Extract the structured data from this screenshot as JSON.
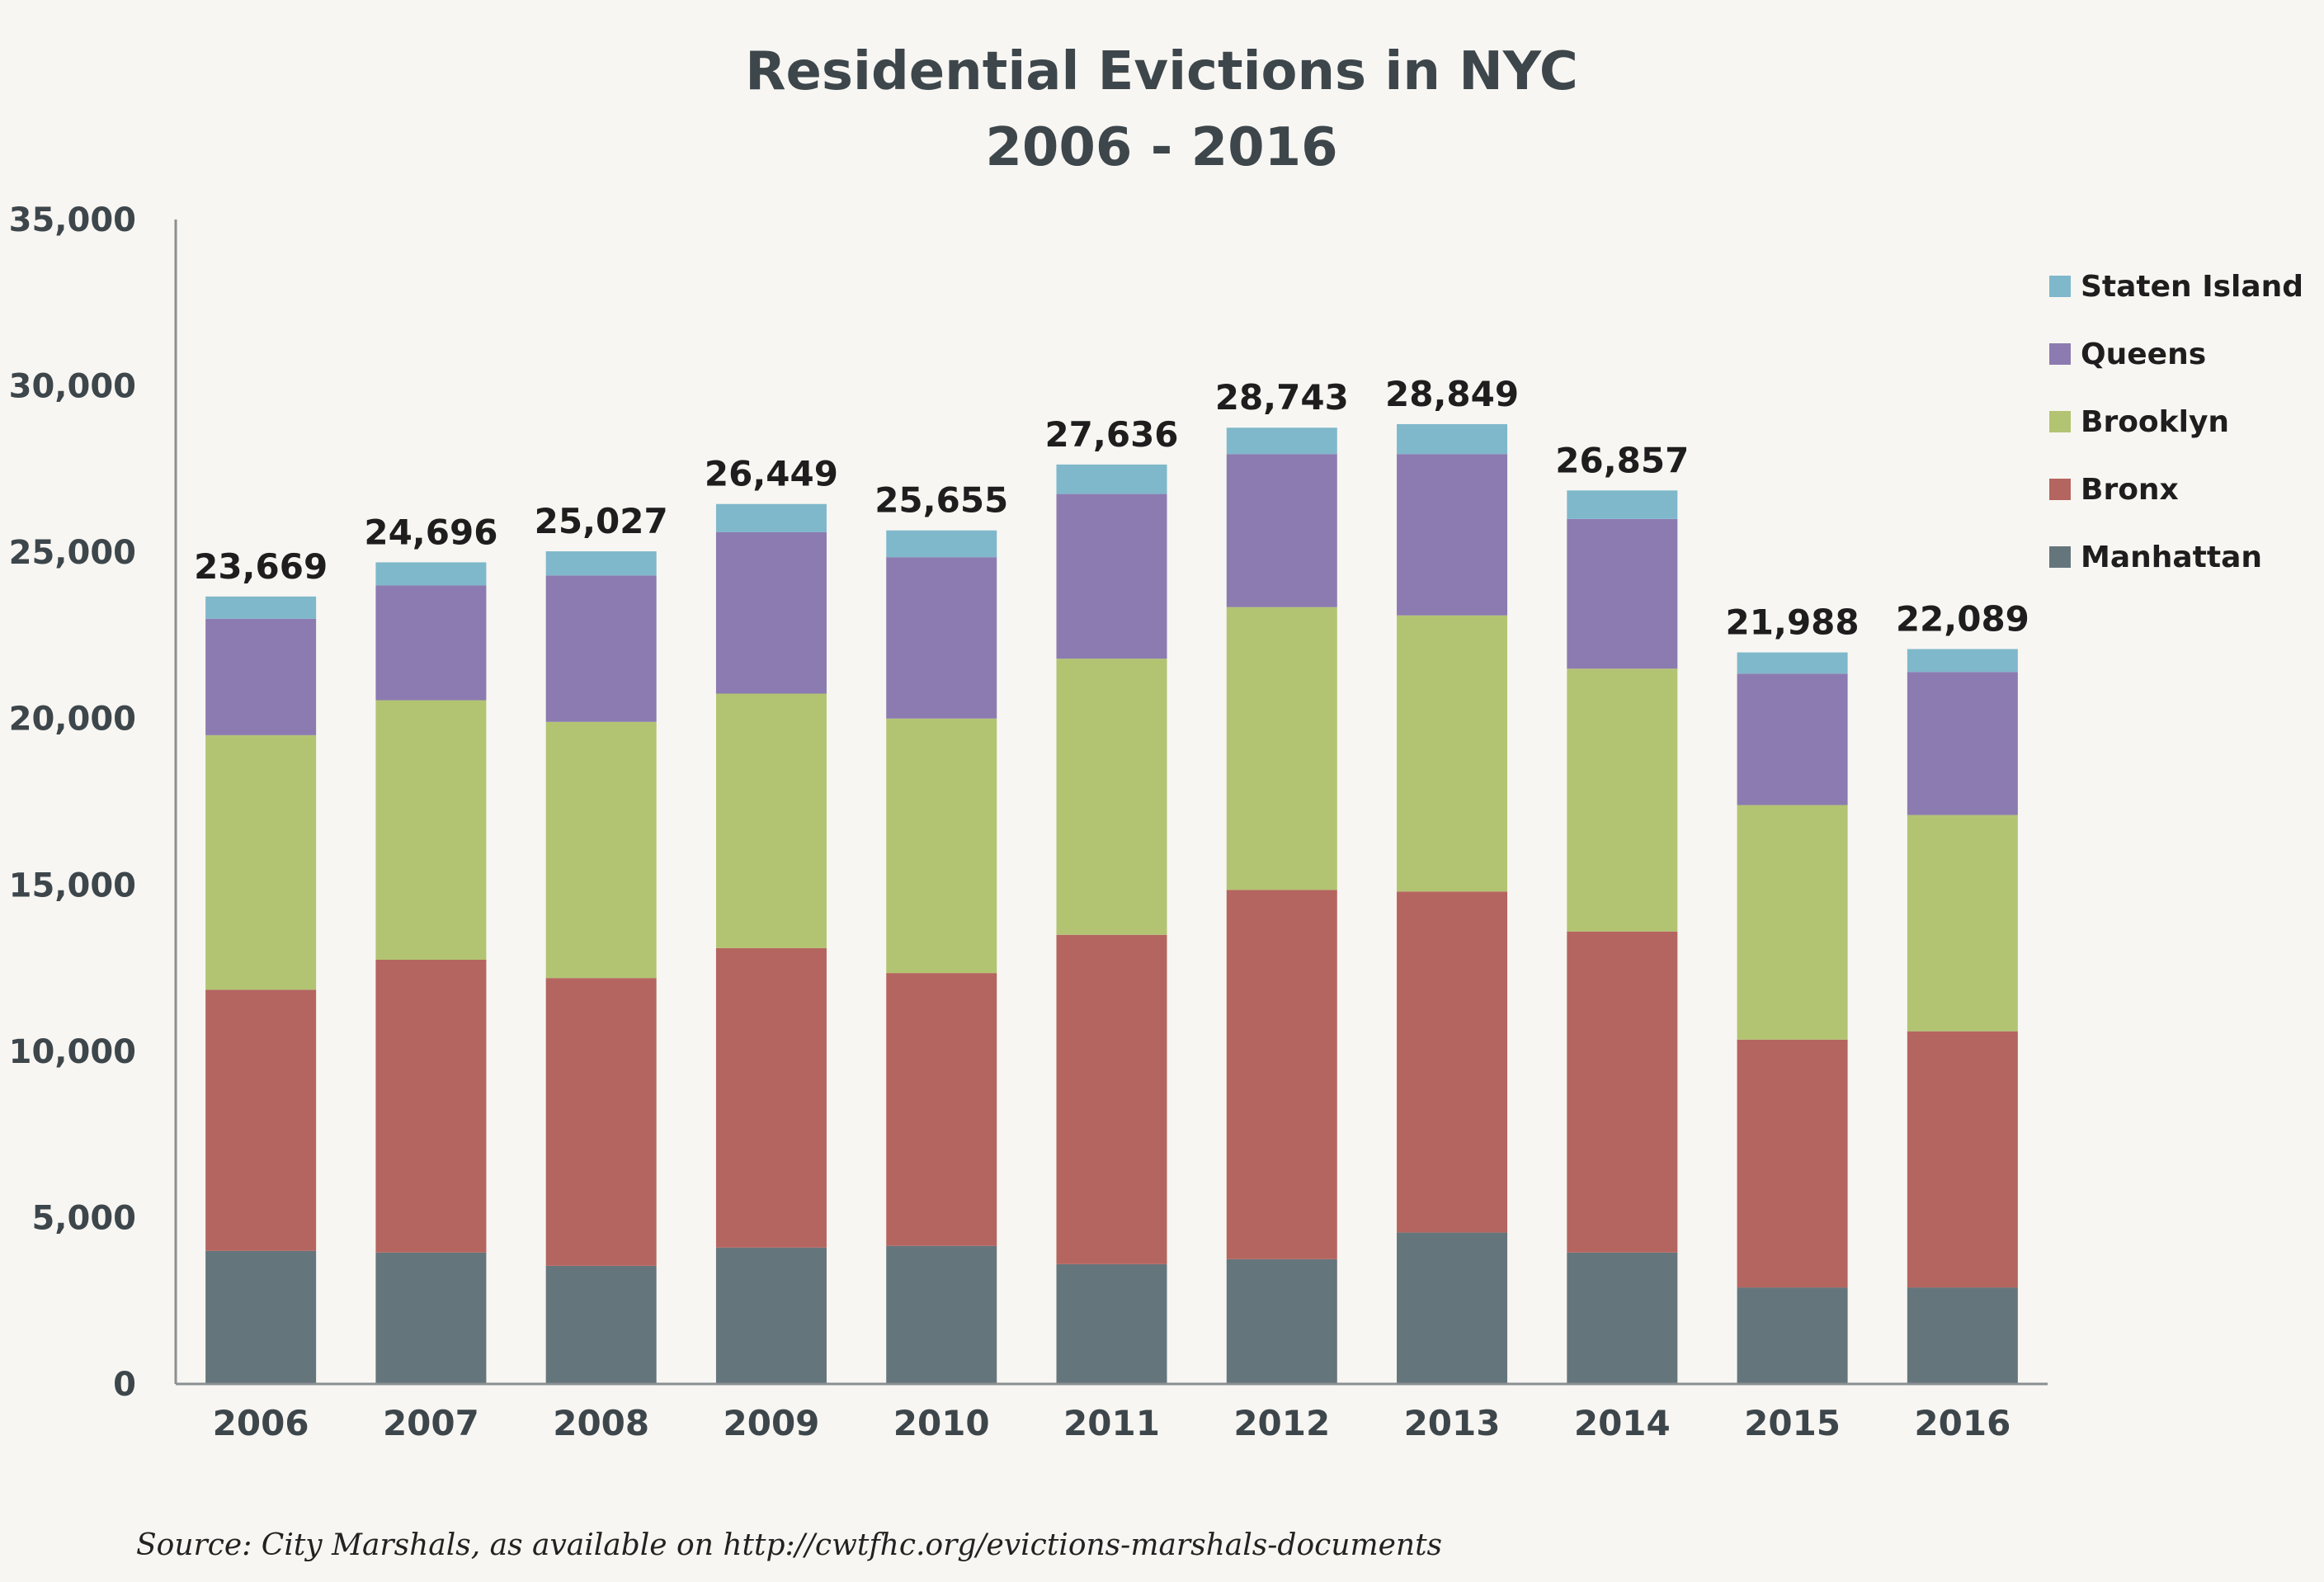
{
  "chart_data": {
    "type": "bar",
    "stacked": true,
    "title": "Residential Evictions in NYC",
    "subtitle": "2006 - 2016",
    "xlabel": "",
    "ylabel": "",
    "ylim": [
      0,
      35000
    ],
    "y_ticks": [
      "0",
      "5,000",
      "10,000",
      "15,000",
      "20,000",
      "25,000",
      "30,000",
      "35,000"
    ],
    "y_tick_values": [
      0,
      5000,
      10000,
      15000,
      20000,
      25000,
      30000,
      35000
    ],
    "grid": false,
    "legend_position": "right",
    "categories": [
      "2006",
      "2007",
      "2008",
      "2009",
      "2010",
      "2011",
      "2012",
      "2013",
      "2014",
      "2015",
      "2016"
    ],
    "totals": [
      23669,
      24696,
      25027,
      26449,
      25655,
      27636,
      28743,
      28849,
      26857,
      21988,
      22089
    ],
    "total_labels": [
      "23,669",
      "24,696",
      "25,027",
      "26,449",
      "25,655",
      "27,636",
      "28,743",
      "28,849",
      "26,857",
      "21,988",
      "22,089"
    ],
    "series": [
      {
        "name": "Manhattan",
        "color": "#65757c",
        "values": [
          4000,
          3950,
          3550,
          4100,
          4150,
          3600,
          3750,
          4550,
          3950,
          2900,
          2900
        ]
      },
      {
        "name": "Bronx",
        "color": "#b5655f",
        "values": [
          7850,
          8800,
          8650,
          9000,
          8200,
          9900,
          11100,
          10250,
          9650,
          7450,
          7700
        ]
      },
      {
        "name": "Brooklyn",
        "color": "#b2c472",
        "values": [
          7650,
          7800,
          7700,
          7650,
          7650,
          8300,
          8500,
          8300,
          7900,
          7050,
          6500
        ]
      },
      {
        "name": "Queens",
        "color": "#8c7bb0",
        "values": [
          3500,
          3450,
          4400,
          4850,
          4850,
          4950,
          4600,
          4850,
          4500,
          3950,
          4300
        ]
      },
      {
        "name": "Staten Island",
        "color": "#7fb8cb",
        "values": [
          669,
          696,
          727,
          849,
          805,
          886,
          793,
          899,
          857,
          638,
          689
        ]
      }
    ],
    "legend_order": [
      "Staten Island",
      "Queens",
      "Brooklyn",
      "Bronx",
      "Manhattan"
    ],
    "source": "Source:  City Marshals, as available on http://cwtfhc.org/evictions-marshals-documents"
  }
}
